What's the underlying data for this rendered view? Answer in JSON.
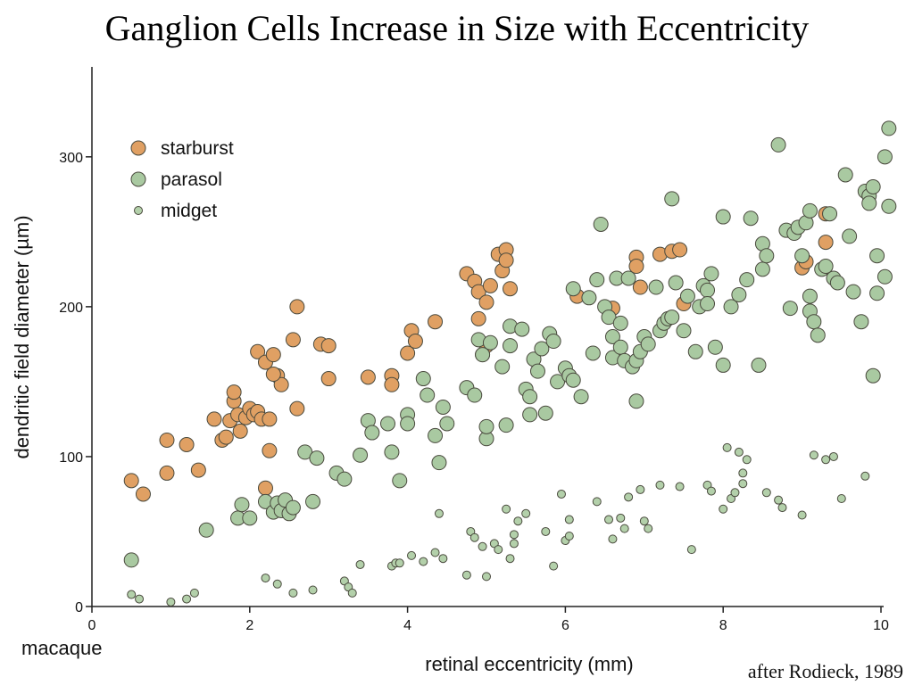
{
  "slide": {
    "title": "Ganglion Cells Increase in Size with Eccentricity",
    "species_label": "macaque",
    "citation": "after Rodieck, 1989"
  },
  "chart_data": {
    "type": "scatter",
    "xlabel": "retinal eccentricity (mm)",
    "ylabel": "dendritic field diameter (µm)",
    "xlim": [
      0,
      10
    ],
    "ylim": [
      0,
      360
    ],
    "xticks": [
      0,
      2,
      4,
      6,
      8,
      10
    ],
    "yticks": [
      0,
      100,
      200,
      300
    ],
    "grid": false,
    "legend_position": "top-left",
    "series": [
      {
        "name": "starburst",
        "color": "#e0a063",
        "marker": "large circle",
        "points": [
          [
            0.5,
            84
          ],
          [
            0.65,
            75
          ],
          [
            0.95,
            111
          ],
          [
            0.95,
            89
          ],
          [
            1.2,
            108
          ],
          [
            1.35,
            91
          ],
          [
            1.55,
            125
          ],
          [
            1.65,
            111
          ],
          [
            1.7,
            113
          ],
          [
            1.75,
            124
          ],
          [
            1.8,
            137
          ],
          [
            1.8,
            143
          ],
          [
            1.85,
            128
          ],
          [
            1.88,
            117
          ],
          [
            1.95,
            126
          ],
          [
            2.0,
            132
          ],
          [
            2.05,
            128
          ],
          [
            2.1,
            130
          ],
          [
            2.1,
            170
          ],
          [
            2.15,
            125
          ],
          [
            2.2,
            163
          ],
          [
            2.2,
            79
          ],
          [
            2.25,
            125
          ],
          [
            2.25,
            104
          ],
          [
            2.3,
            168
          ],
          [
            2.35,
            154
          ],
          [
            2.4,
            148
          ],
          [
            2.3,
            155
          ],
          [
            2.55,
            178
          ],
          [
            2.6,
            132
          ],
          [
            2.6,
            200
          ],
          [
            2.9,
            175
          ],
          [
            3.0,
            174
          ],
          [
            3.0,
            152
          ],
          [
            3.5,
            153
          ],
          [
            3.8,
            154
          ],
          [
            3.8,
            148
          ],
          [
            4.0,
            169
          ],
          [
            4.05,
            184
          ],
          [
            4.1,
            177
          ],
          [
            4.35,
            190
          ],
          [
            4.75,
            222
          ],
          [
            4.85,
            217
          ],
          [
            4.9,
            192
          ],
          [
            4.9,
            210
          ],
          [
            4.95,
            168
          ],
          [
            5.0,
            203
          ],
          [
            5.0,
            174
          ],
          [
            5.05,
            214
          ],
          [
            5.15,
            235
          ],
          [
            5.2,
            224
          ],
          [
            5.25,
            238
          ],
          [
            5.25,
            231
          ],
          [
            5.3,
            212
          ],
          [
            6.15,
            207
          ],
          [
            6.6,
            199
          ],
          [
            6.9,
            233
          ],
          [
            6.9,
            227
          ],
          [
            6.95,
            213
          ],
          [
            7.2,
            235
          ],
          [
            7.35,
            237
          ],
          [
            7.45,
            238
          ],
          [
            7.5,
            202
          ],
          [
            9.0,
            226
          ],
          [
            9.05,
            230
          ],
          [
            9.3,
            243
          ],
          [
            9.3,
            262
          ]
        ]
      },
      {
        "name": "parasol",
        "color": "#a9c9a1",
        "marker": "large circle",
        "points": [
          [
            0.5,
            31
          ],
          [
            1.45,
            51
          ],
          [
            1.85,
            59
          ],
          [
            1.9,
            68
          ],
          [
            2.0,
            59
          ],
          [
            2.2,
            70
          ],
          [
            2.3,
            63
          ],
          [
            2.35,
            69
          ],
          [
            2.4,
            64
          ],
          [
            2.45,
            71
          ],
          [
            2.5,
            62
          ],
          [
            2.55,
            66
          ],
          [
            2.7,
            103
          ],
          [
            2.8,
            70
          ],
          [
            2.85,
            99
          ],
          [
            3.1,
            89
          ],
          [
            3.2,
            85
          ],
          [
            3.4,
            101
          ],
          [
            3.5,
            124
          ],
          [
            3.55,
            116
          ],
          [
            3.75,
            122
          ],
          [
            3.8,
            103
          ],
          [
            3.9,
            84
          ],
          [
            4.0,
            128
          ],
          [
            4.0,
            122
          ],
          [
            4.2,
            152
          ],
          [
            4.25,
            141
          ],
          [
            4.35,
            114
          ],
          [
            4.4,
            96
          ],
          [
            4.45,
            133
          ],
          [
            4.5,
            122
          ],
          [
            4.75,
            146
          ],
          [
            4.85,
            141
          ],
          [
            4.9,
            178
          ],
          [
            4.95,
            168
          ],
          [
            5.0,
            112
          ],
          [
            5.0,
            120
          ],
          [
            5.05,
            176
          ],
          [
            5.2,
            160
          ],
          [
            5.25,
            121
          ],
          [
            5.3,
            187
          ],
          [
            5.3,
            174
          ],
          [
            5.45,
            185
          ],
          [
            5.5,
            145
          ],
          [
            5.55,
            128
          ],
          [
            5.55,
            140
          ],
          [
            5.6,
            165
          ],
          [
            5.65,
            157
          ],
          [
            5.7,
            172
          ],
          [
            5.75,
            129
          ],
          [
            5.8,
            182
          ],
          [
            5.85,
            177
          ],
          [
            5.9,
            150
          ],
          [
            6.0,
            159
          ],
          [
            6.05,
            154
          ],
          [
            6.1,
            151
          ],
          [
            6.1,
            212
          ],
          [
            6.2,
            140
          ],
          [
            6.3,
            206
          ],
          [
            6.35,
            169
          ],
          [
            6.4,
            218
          ],
          [
            6.45,
            255
          ],
          [
            6.5,
            200
          ],
          [
            6.55,
            193
          ],
          [
            6.6,
            180
          ],
          [
            6.6,
            166
          ],
          [
            6.65,
            219
          ],
          [
            6.7,
            189
          ],
          [
            6.7,
            173
          ],
          [
            6.75,
            164
          ],
          [
            6.8,
            219
          ],
          [
            6.85,
            160
          ],
          [
            6.9,
            164
          ],
          [
            6.9,
            137
          ],
          [
            6.95,
            170
          ],
          [
            7.0,
            180
          ],
          [
            7.05,
            175
          ],
          [
            7.15,
            213
          ],
          [
            7.2,
            184
          ],
          [
            7.25,
            189
          ],
          [
            7.3,
            192
          ],
          [
            7.35,
            193
          ],
          [
            7.4,
            216
          ],
          [
            7.35,
            272
          ],
          [
            7.5,
            184
          ],
          [
            7.55,
            207
          ],
          [
            7.65,
            170
          ],
          [
            7.7,
            200
          ],
          [
            7.75,
            214
          ],
          [
            7.8,
            211
          ],
          [
            7.8,
            202
          ],
          [
            7.85,
            222
          ],
          [
            7.9,
            173
          ],
          [
            8.0,
            260
          ],
          [
            8.0,
            161
          ],
          [
            8.1,
            200
          ],
          [
            8.2,
            208
          ],
          [
            8.3,
            218
          ],
          [
            8.35,
            259
          ],
          [
            8.45,
            161
          ],
          [
            8.5,
            225
          ],
          [
            8.5,
            242
          ],
          [
            8.55,
            234
          ],
          [
            8.7,
            308
          ],
          [
            8.8,
            251
          ],
          [
            8.85,
            199
          ],
          [
            8.9,
            249
          ],
          [
            8.95,
            253
          ],
          [
            9.0,
            234
          ],
          [
            9.05,
            256
          ],
          [
            9.1,
            207
          ],
          [
            9.1,
            197
          ],
          [
            9.1,
            264
          ],
          [
            9.15,
            190
          ],
          [
            9.2,
            181
          ],
          [
            9.25,
            225
          ],
          [
            9.3,
            227
          ],
          [
            9.35,
            262
          ],
          [
            9.4,
            219
          ],
          [
            9.45,
            216
          ],
          [
            9.55,
            288
          ],
          [
            9.6,
            247
          ],
          [
            9.65,
            210
          ],
          [
            9.75,
            190
          ],
          [
            9.8,
            277
          ],
          [
            9.85,
            274
          ],
          [
            9.9,
            280
          ],
          [
            9.9,
            154
          ],
          [
            9.95,
            234
          ],
          [
            9.95,
            209
          ],
          [
            10.05,
            220
          ],
          [
            10.05,
            300
          ],
          [
            10.1,
            267
          ],
          [
            10.1,
            319
          ],
          [
            9.85,
            269
          ]
        ]
      },
      {
        "name": "midget",
        "color": "#b3d0aa",
        "marker": "small circle",
        "points": [
          [
            0.5,
            8
          ],
          [
            0.6,
            5
          ],
          [
            1.0,
            3
          ],
          [
            1.2,
            5
          ],
          [
            1.3,
            9
          ],
          [
            2.2,
            19
          ],
          [
            2.35,
            15
          ],
          [
            2.55,
            9
          ],
          [
            2.8,
            11
          ],
          [
            3.2,
            17
          ],
          [
            3.25,
            13
          ],
          [
            3.3,
            9
          ],
          [
            3.4,
            28
          ],
          [
            3.8,
            27
          ],
          [
            3.85,
            29
          ],
          [
            3.9,
            29
          ],
          [
            4.05,
            34
          ],
          [
            4.2,
            30
          ],
          [
            4.35,
            36
          ],
          [
            4.4,
            62
          ],
          [
            4.45,
            32
          ],
          [
            4.75,
            21
          ],
          [
            4.8,
            50
          ],
          [
            4.85,
            46
          ],
          [
            4.95,
            40
          ],
          [
            5.0,
            20
          ],
          [
            5.1,
            42
          ],
          [
            5.15,
            38
          ],
          [
            5.25,
            65
          ],
          [
            5.3,
            32
          ],
          [
            5.35,
            42
          ],
          [
            5.35,
            48
          ],
          [
            5.4,
            57
          ],
          [
            5.5,
            62
          ],
          [
            5.75,
            50
          ],
          [
            5.85,
            27
          ],
          [
            5.95,
            75
          ],
          [
            6.0,
            44
          ],
          [
            6.05,
            58
          ],
          [
            6.05,
            47
          ],
          [
            6.4,
            70
          ],
          [
            6.55,
            58
          ],
          [
            6.6,
            45
          ],
          [
            6.7,
            59
          ],
          [
            6.75,
            52
          ],
          [
            6.8,
            73
          ],
          [
            6.95,
            78
          ],
          [
            7.0,
            57
          ],
          [
            7.05,
            52
          ],
          [
            7.2,
            81
          ],
          [
            7.45,
            80
          ],
          [
            7.6,
            38
          ],
          [
            7.8,
            81
          ],
          [
            7.85,
            77
          ],
          [
            8.0,
            65
          ],
          [
            8.05,
            106
          ],
          [
            8.1,
            72
          ],
          [
            8.15,
            76
          ],
          [
            8.2,
            103
          ],
          [
            8.25,
            89
          ],
          [
            8.25,
            82
          ],
          [
            8.3,
            98
          ],
          [
            8.55,
            76
          ],
          [
            8.7,
            71
          ],
          [
            8.75,
            66
          ],
          [
            9.0,
            61
          ],
          [
            9.15,
            101
          ],
          [
            9.3,
            98
          ],
          [
            9.4,
            100
          ],
          [
            9.5,
            72
          ],
          [
            9.8,
            87
          ]
        ]
      }
    ]
  }
}
